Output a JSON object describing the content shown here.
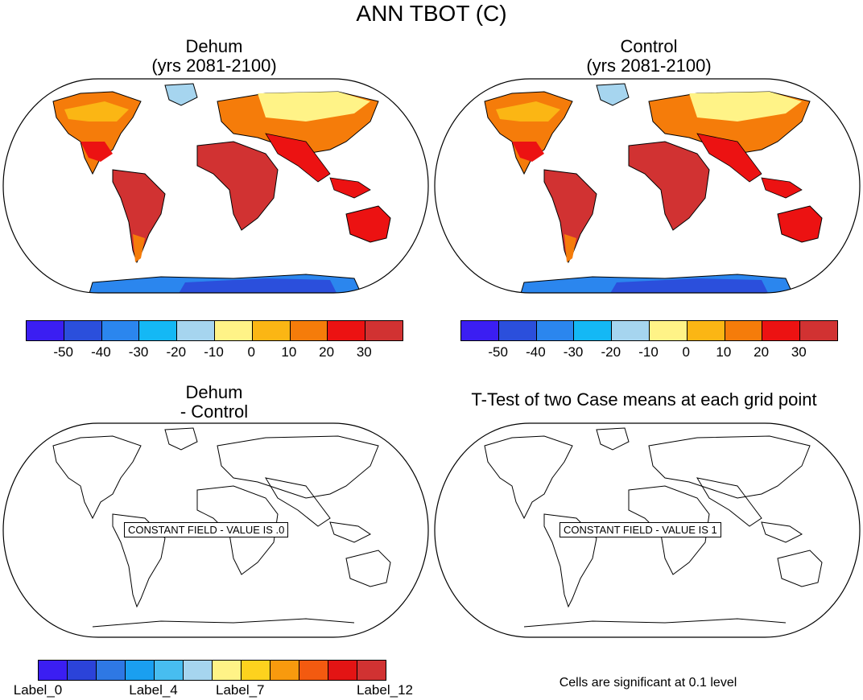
{
  "title": "ANN TBOT (C)",
  "panels": [
    {
      "id": "dehum",
      "title_line1": "Dehum",
      "title_line2": "(yrs 2081-2100)"
    },
    {
      "id": "control",
      "title_line1": "Control",
      "title_line2": "(yrs 2081-2100)"
    },
    {
      "id": "diff",
      "title_line1": "Dehum",
      "title_line2": "- Control",
      "constant_label": "CONSTANT FIELD - VALUE IS .0"
    },
    {
      "id": "ttest",
      "title_line1": "T-Test of two Case means at each grid point",
      "constant_label": "CONSTANT FIELD - VALUE IS 1"
    }
  ],
  "colorbar_top": {
    "colors": [
      "#3b1ef2",
      "#2b4fdc",
      "#2b86ee",
      "#14b8f5",
      "#a6d5ef",
      "#fff387",
      "#fbb614",
      "#f57c0a",
      "#ec1212",
      "#d13232"
    ],
    "labels": [
      "-50",
      "-40",
      "-30",
      "-20",
      "-10",
      "0",
      "10",
      "20",
      "30"
    ]
  },
  "colorbar_bottom": {
    "colors": [
      "#3b1ef2",
      "#2b43d9",
      "#2e78e4",
      "#1a9ff0",
      "#47bdf0",
      "#a6d5ef",
      "#fff387",
      "#fdd21e",
      "#f89a0e",
      "#f35a10",
      "#e31414",
      "#d13232"
    ],
    "labels": [
      "Label_0",
      "Label_4",
      "Label_7",
      "Label_12"
    ]
  },
  "significance_note": "Cells are significant at 0.1 level",
  "icons": [
    "world-map-icon"
  ]
}
